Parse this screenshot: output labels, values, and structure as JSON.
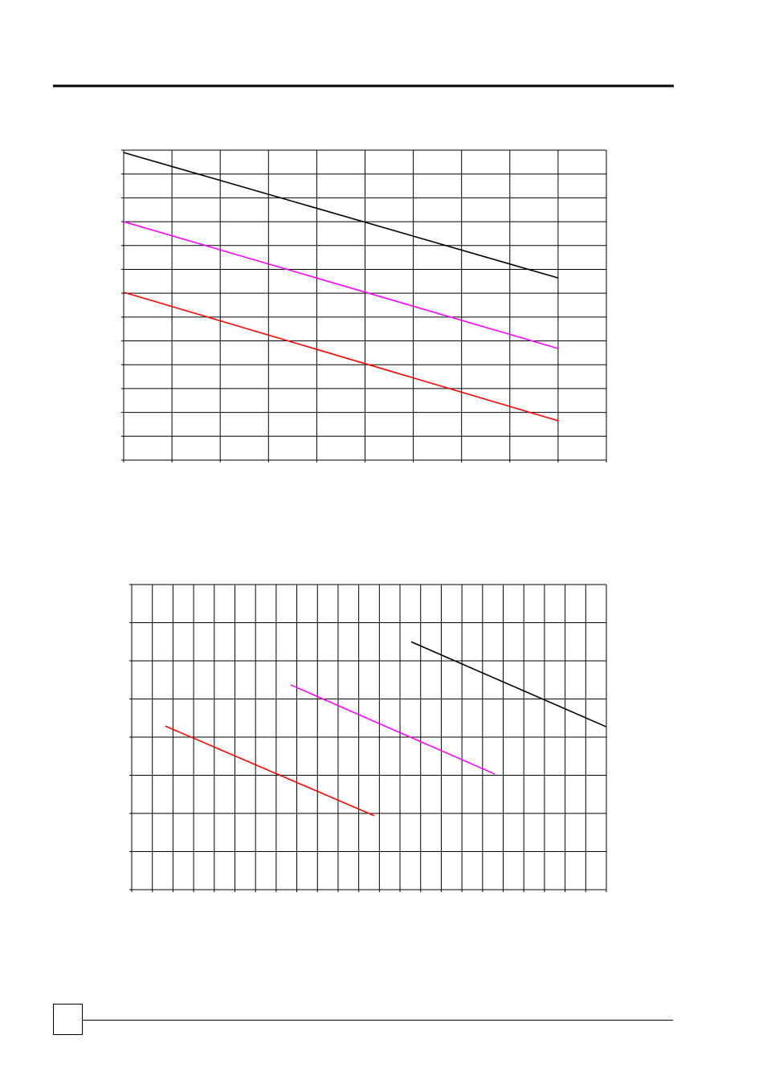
{
  "chart_data": [
    {
      "type": "line",
      "xlim": [
        0,
        10
      ],
      "xticks": [
        0,
        1,
        2,
        3,
        4,
        5,
        6,
        7,
        8,
        9,
        10
      ],
      "ylim": [
        0,
        13
      ],
      "yticks": [
        0,
        1,
        2,
        3,
        4,
        5,
        6,
        7,
        8,
        9,
        10,
        11,
        12,
        13
      ],
      "grid": true,
      "series": [
        {
          "color": "#000000",
          "x": [
            0,
            9
          ],
          "values": [
            12.9,
            7.64
          ]
        },
        {
          "color": "#ff00ff",
          "x": [
            0,
            9
          ],
          "values": [
            10.0,
            4.68
          ]
        },
        {
          "color": "#ff0000",
          "x": [
            0,
            9
          ],
          "values": [
            7.04,
            1.65
          ]
        }
      ]
    },
    {
      "type": "line",
      "xlim": [
        0,
        23
      ],
      "xticks": [
        0,
        1,
        2,
        3,
        4,
        5,
        6,
        7,
        8,
        9,
        10,
        11,
        12,
        13,
        14,
        15,
        16,
        17,
        18,
        19,
        20,
        21,
        22,
        23
      ],
      "ylim": [
        0,
        8
      ],
      "yticks": [
        0,
        1,
        2,
        3,
        4,
        5,
        6,
        7,
        8
      ],
      "grid": true,
      "series": [
        {
          "color": "#000000",
          "x": [
            13.54,
            23
          ],
          "values": [
            6.5,
            4.27
          ]
        },
        {
          "color": "#ff00ff",
          "x": [
            7.7,
            17.6
          ],
          "values": [
            5.37,
            3.03
          ]
        },
        {
          "color": "#ff0000",
          "x": [
            1.63,
            11.75
          ],
          "values": [
            4.29,
            1.94
          ]
        }
      ]
    }
  ]
}
